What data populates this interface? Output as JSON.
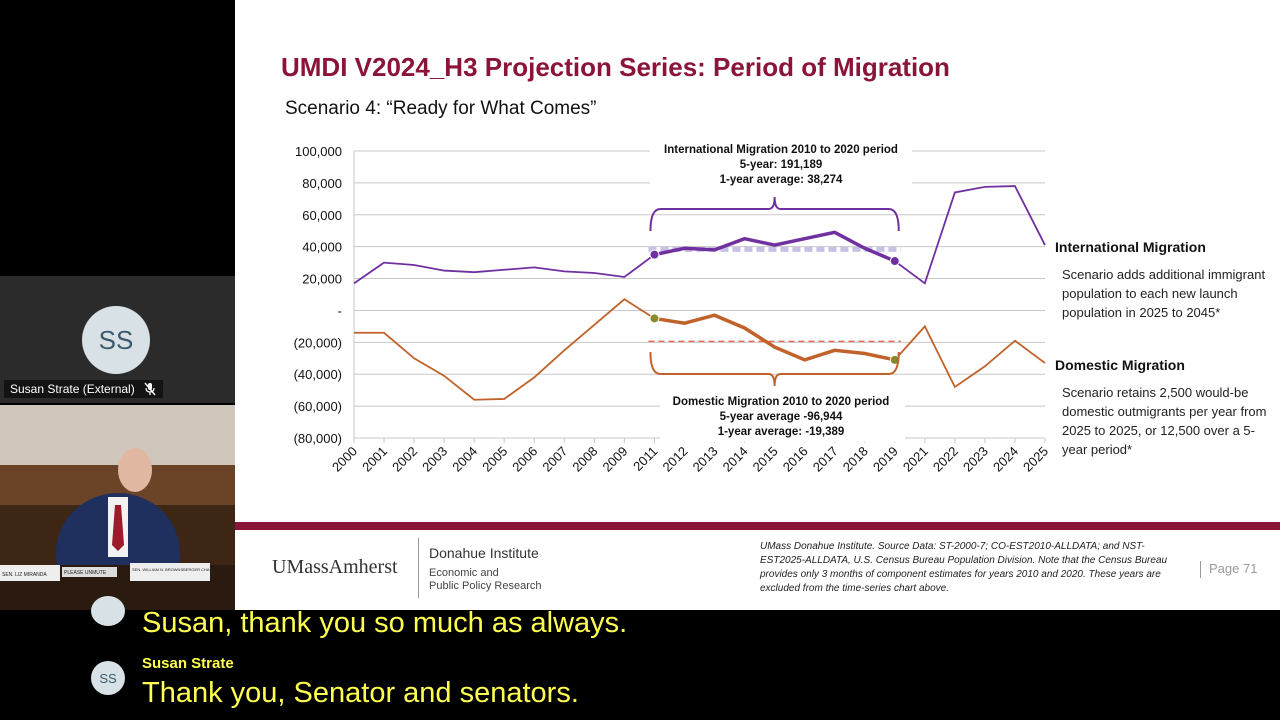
{
  "participants": {
    "susan": {
      "initials": "SS",
      "name": "Susan Strate (External)",
      "icon": "mic-off-icon"
    },
    "video": {
      "placards": [
        "SEN. LIZ MIRANDA",
        "SEN. WILLIAM N. BROWNSBERGER CHAIR",
        "PLEASE UNMUTE"
      ]
    }
  },
  "slide": {
    "title": "UMDI V2024_H3 Projection Series: Period of Migration",
    "subtitle": "Scenario 4: “Ready for What Comes”",
    "intl_heading": "International Migration",
    "intl_text": "Scenario adds additional immigrant population to each new launch population in 2025 to 2045*",
    "dom_heading": "Domestic Migration",
    "dom_text": "Scenario retains 2,500 would-be domestic outmigrants per year from 2025 to 2025, or 12,500 over a 5-year period*",
    "logo": "UMassAmherst",
    "institute": "Donahue Institute",
    "institute_sub1": "Economic and",
    "institute_sub2": "Public Policy Research",
    "footnote": "UMass Donahue Institute. Source Data: ST-2000-7; CO-EST2010-ALLDATA; and NST-EST2025-ALLDATA, U.S. Census Bureau Population Division. Note that the Census Bureau provides only 3 months of component estimates for years 2010 and 2020. These years are excluded from the time-series chart above.",
    "page": "Page 71",
    "colors": {
      "title": "#8a1538",
      "intl": "#7030a0",
      "dom": "#c0622a",
      "footer_bar": "#8a1538"
    }
  },
  "chart_data": {
    "type": "line",
    "categories": [
      "2000",
      "2001",
      "2002",
      "2003",
      "2004",
      "2005",
      "2006",
      "2007",
      "2008",
      "2009",
      "2011",
      "2012",
      "2013",
      "2014",
      "2015",
      "2016",
      "2017",
      "2018",
      "2019",
      "2021",
      "2022",
      "2023",
      "2024",
      "2025"
    ],
    "yticks": [
      "100,000",
      "80,000",
      "60,000",
      "40,000",
      "20,000",
      "-",
      "(20,000)",
      "(40,000)",
      "(60,000)",
      "(80,000)"
    ],
    "ylim": [
      -80000,
      100000
    ],
    "series": [
      {
        "name": "International Migration",
        "color": "#7030a0",
        "values": [
          17000,
          30000,
          28500,
          25000,
          24000,
          25500,
          27000,
          24500,
          23500,
          21000,
          35000,
          39000,
          38000,
          45000,
          41000,
          45000,
          49000,
          39000,
          31000,
          17000,
          74000,
          77500,
          78000,
          41000
        ]
      },
      {
        "name": "Domestic Migration",
        "color": "#c0622a",
        "values": [
          -14000,
          -14000,
          -30000,
          -41000,
          -56000,
          -55500,
          -42000,
          -25000,
          -9000,
          7000,
          -5000,
          -8000,
          -3000,
          -11000,
          -23000,
          -31000,
          -25000,
          -27000,
          -31000,
          -10000,
          -48000,
          -35000,
          -19000,
          -33000
        ]
      }
    ],
    "intl_average": 38274,
    "dom_average": -19389,
    "intl_annotation": {
      "title": "International Migration 2010 to 2020 period",
      "line2": "5-year: 191,189",
      "line3": "1-year average: 38,274"
    },
    "dom_annotation": {
      "title": "Domestic Migration 2010 to 2020 period",
      "line2": "5-year average -96,944",
      "line3": "1-year average: -19,389"
    }
  },
  "captions": {
    "line1": "Susan, thank you so much as always.",
    "speaker": "Susan Strate",
    "speaker_initials": "SS",
    "line2": "Thank you, Senator and senators."
  }
}
